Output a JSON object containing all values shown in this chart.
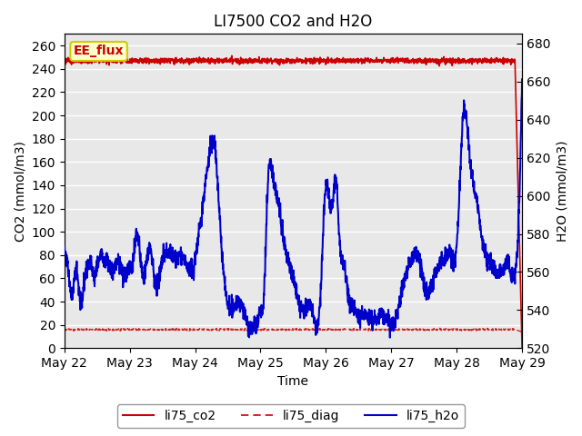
{
  "title": "LI7500 CO2 and H2O",
  "xlabel": "Time",
  "ylabel_left": "CO2 (mmol/m3)",
  "ylabel_right": "H2O (mmol/m3)",
  "ylim_left": [
    0,
    270
  ],
  "ylim_right": [
    520,
    685
  ],
  "yticks_left": [
    0,
    20,
    40,
    60,
    80,
    100,
    120,
    140,
    160,
    180,
    200,
    220,
    240,
    260
  ],
  "yticks_right": [
    520,
    540,
    560,
    580,
    600,
    620,
    640,
    660,
    680
  ],
  "xtick_labels": [
    "May 22",
    "May 23",
    "May 24",
    "May 25",
    "May 26",
    "May 27",
    "May 28",
    "May 29"
  ],
  "annotation_text": "EE_flux",
  "annotation_color": "#cc0000",
  "annotation_bg": "#ffffcc",
  "annotation_border": "#cccc00",
  "co2_color": "#cc0000",
  "diag_color": "#cc0000",
  "h2o_color": "#0000cc",
  "bg_color": "#e8e8e8",
  "grid_color": "#ffffff",
  "title_fontsize": 12,
  "axis_fontsize": 10,
  "tick_fontsize": 10,
  "legend_fontsize": 10,
  "co2_value": 247,
  "diag_value": 16,
  "num_points": 2000
}
